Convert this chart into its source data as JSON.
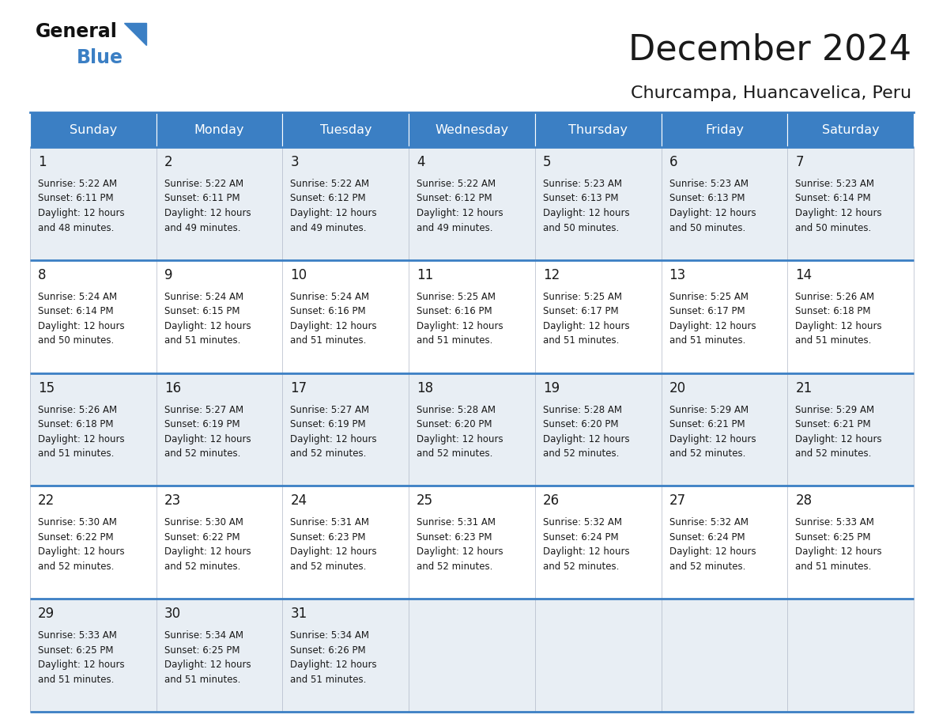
{
  "title": "December 2024",
  "subtitle": "Churcampa, Huancavelica, Peru",
  "header_bg_color": "#3b7fc4",
  "header_text_color": "#ffffff",
  "row_bg_odd": "#e8eef4",
  "row_bg_even": "#ffffff",
  "border_color": "#3b7fc4",
  "text_color": "#1a1a1a",
  "days_of_week": [
    "Sunday",
    "Monday",
    "Tuesday",
    "Wednesday",
    "Thursday",
    "Friday",
    "Saturday"
  ],
  "weeks": [
    [
      {
        "day": 1,
        "sunrise": "5:22 AM",
        "sunset": "6:11 PM",
        "daylight_hrs": 12,
        "daylight_min": 48
      },
      {
        "day": 2,
        "sunrise": "5:22 AM",
        "sunset": "6:11 PM",
        "daylight_hrs": 12,
        "daylight_min": 49
      },
      {
        "day": 3,
        "sunrise": "5:22 AM",
        "sunset": "6:12 PM",
        "daylight_hrs": 12,
        "daylight_min": 49
      },
      {
        "day": 4,
        "sunrise": "5:22 AM",
        "sunset": "6:12 PM",
        "daylight_hrs": 12,
        "daylight_min": 49
      },
      {
        "day": 5,
        "sunrise": "5:23 AM",
        "sunset": "6:13 PM",
        "daylight_hrs": 12,
        "daylight_min": 50
      },
      {
        "day": 6,
        "sunrise": "5:23 AM",
        "sunset": "6:13 PM",
        "daylight_hrs": 12,
        "daylight_min": 50
      },
      {
        "day": 7,
        "sunrise": "5:23 AM",
        "sunset": "6:14 PM",
        "daylight_hrs": 12,
        "daylight_min": 50
      }
    ],
    [
      {
        "day": 8,
        "sunrise": "5:24 AM",
        "sunset": "6:14 PM",
        "daylight_hrs": 12,
        "daylight_min": 50
      },
      {
        "day": 9,
        "sunrise": "5:24 AM",
        "sunset": "6:15 PM",
        "daylight_hrs": 12,
        "daylight_min": 51
      },
      {
        "day": 10,
        "sunrise": "5:24 AM",
        "sunset": "6:16 PM",
        "daylight_hrs": 12,
        "daylight_min": 51
      },
      {
        "day": 11,
        "sunrise": "5:25 AM",
        "sunset": "6:16 PM",
        "daylight_hrs": 12,
        "daylight_min": 51
      },
      {
        "day": 12,
        "sunrise": "5:25 AM",
        "sunset": "6:17 PM",
        "daylight_hrs": 12,
        "daylight_min": 51
      },
      {
        "day": 13,
        "sunrise": "5:25 AM",
        "sunset": "6:17 PM",
        "daylight_hrs": 12,
        "daylight_min": 51
      },
      {
        "day": 14,
        "sunrise": "5:26 AM",
        "sunset": "6:18 PM",
        "daylight_hrs": 12,
        "daylight_min": 51
      }
    ],
    [
      {
        "day": 15,
        "sunrise": "5:26 AM",
        "sunset": "6:18 PM",
        "daylight_hrs": 12,
        "daylight_min": 51
      },
      {
        "day": 16,
        "sunrise": "5:27 AM",
        "sunset": "6:19 PM",
        "daylight_hrs": 12,
        "daylight_min": 52
      },
      {
        "day": 17,
        "sunrise": "5:27 AM",
        "sunset": "6:19 PM",
        "daylight_hrs": 12,
        "daylight_min": 52
      },
      {
        "day": 18,
        "sunrise": "5:28 AM",
        "sunset": "6:20 PM",
        "daylight_hrs": 12,
        "daylight_min": 52
      },
      {
        "day": 19,
        "sunrise": "5:28 AM",
        "sunset": "6:20 PM",
        "daylight_hrs": 12,
        "daylight_min": 52
      },
      {
        "day": 20,
        "sunrise": "5:29 AM",
        "sunset": "6:21 PM",
        "daylight_hrs": 12,
        "daylight_min": 52
      },
      {
        "day": 21,
        "sunrise": "5:29 AM",
        "sunset": "6:21 PM",
        "daylight_hrs": 12,
        "daylight_min": 52
      }
    ],
    [
      {
        "day": 22,
        "sunrise": "5:30 AM",
        "sunset": "6:22 PM",
        "daylight_hrs": 12,
        "daylight_min": 52
      },
      {
        "day": 23,
        "sunrise": "5:30 AM",
        "sunset": "6:22 PM",
        "daylight_hrs": 12,
        "daylight_min": 52
      },
      {
        "day": 24,
        "sunrise": "5:31 AM",
        "sunset": "6:23 PM",
        "daylight_hrs": 12,
        "daylight_min": 52
      },
      {
        "day": 25,
        "sunrise": "5:31 AM",
        "sunset": "6:23 PM",
        "daylight_hrs": 12,
        "daylight_min": 52
      },
      {
        "day": 26,
        "sunrise": "5:32 AM",
        "sunset": "6:24 PM",
        "daylight_hrs": 12,
        "daylight_min": 52
      },
      {
        "day": 27,
        "sunrise": "5:32 AM",
        "sunset": "6:24 PM",
        "daylight_hrs": 12,
        "daylight_min": 52
      },
      {
        "day": 28,
        "sunrise": "5:33 AM",
        "sunset": "6:25 PM",
        "daylight_hrs": 12,
        "daylight_min": 51
      }
    ],
    [
      {
        "day": 29,
        "sunrise": "5:33 AM",
        "sunset": "6:25 PM",
        "daylight_hrs": 12,
        "daylight_min": 51
      },
      {
        "day": 30,
        "sunrise": "5:34 AM",
        "sunset": "6:25 PM",
        "daylight_hrs": 12,
        "daylight_min": 51
      },
      {
        "day": 31,
        "sunrise": "5:34 AM",
        "sunset": "6:26 PM",
        "daylight_hrs": 12,
        "daylight_min": 51
      },
      null,
      null,
      null,
      null
    ]
  ]
}
